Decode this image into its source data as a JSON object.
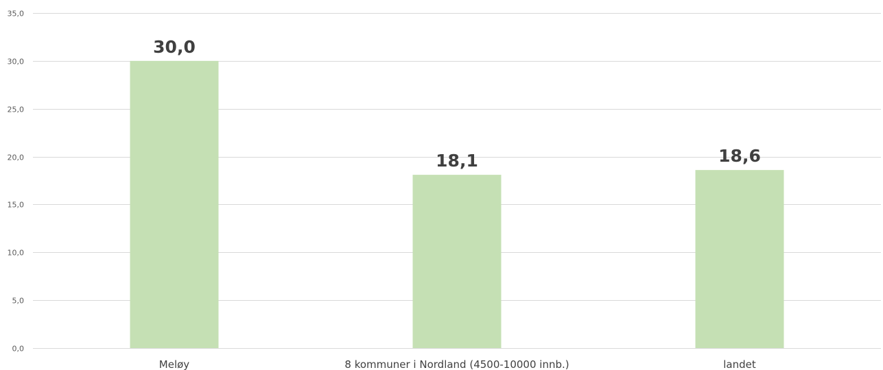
{
  "chart_data": {
    "type": "bar",
    "categories": [
      "Meløy",
      "8 kommuner i Nordland (4500-10000 innb.)",
      "landet"
    ],
    "values": [
      30.0,
      18.1,
      18.6
    ],
    "data_labels": [
      "30,0",
      "18,1",
      "18,6"
    ],
    "title": "",
    "xlabel": "",
    "ylabel": "",
    "ylim": [
      0,
      35
    ],
    "yticks": [
      0,
      5,
      10,
      15,
      20,
      25,
      30,
      35
    ],
    "ytick_labels": [
      "0,0",
      "5,0",
      "10,0",
      "15,0",
      "20,0",
      "25,0",
      "30,0",
      "35,0"
    ],
    "grid": true,
    "legend": "none",
    "bar_color": "#c5e0b4"
  }
}
